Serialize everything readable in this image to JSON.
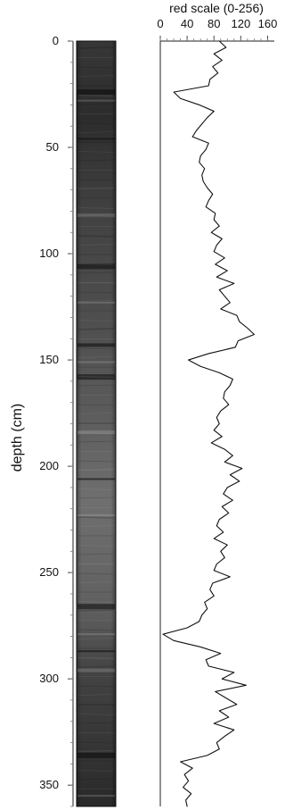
{
  "chart_data": {
    "type": "line",
    "title": "",
    "xlabel": "red scale (0-256)",
    "ylabel": "depth (cm)",
    "x_ticks": [
      "0",
      "40",
      "80",
      "120",
      "160"
    ],
    "y_ticks": [
      "0",
      "50",
      "100",
      "150",
      "200",
      "250",
      "300",
      "350"
    ],
    "xlim": [
      0,
      170
    ],
    "ylim": [
      0,
      360
    ],
    "grid": false,
    "series": [
      {
        "depth": [
          0,
          3,
          6,
          9,
          12,
          15,
          18,
          21,
          24,
          27,
          30,
          33,
          36,
          39,
          42,
          45,
          48,
          51,
          54,
          57,
          60,
          63,
          66,
          69,
          72,
          75,
          78,
          81,
          84,
          87,
          90,
          93,
          96,
          99,
          102,
          105,
          108,
          111,
          114,
          117,
          120,
          123,
          126,
          129,
          132,
          135,
          138,
          141,
          144,
          147,
          150,
          153,
          156,
          159,
          162,
          165,
          168,
          171,
          174,
          177,
          180,
          183,
          186,
          189,
          192,
          195,
          198,
          201,
          204,
          207,
          210,
          213,
          216,
          219,
          222,
          225,
          228,
          231,
          234,
          237,
          240,
          243,
          246,
          249,
          252,
          255,
          258,
          261,
          264,
          267,
          270,
          273,
          276,
          279,
          282,
          285,
          288,
          291,
          294,
          297,
          300,
          303,
          306,
          309,
          312,
          315,
          318,
          321,
          324,
          327,
          330,
          333,
          336,
          339,
          342,
          345,
          348,
          351,
          354,
          357,
          360
        ],
        "red_scale": [
          88,
          98,
          80,
          92,
          78,
          86,
          74,
          72,
          20,
          30,
          58,
          80,
          70,
          62,
          54,
          48,
          72,
          68,
          60,
          58,
          66,
          62,
          64,
          70,
          78,
          72,
          68,
          82,
          80,
          88,
          76,
          92,
          84,
          80,
          96,
          82,
          100,
          84,
          110,
          88,
          96,
          104,
          90,
          114,
          118,
          130,
          140,
          116,
          112,
          72,
          42,
          60,
          88,
          108,
          104,
          96,
          94,
          102,
          90,
          84,
          88,
          80,
          92,
          76,
          96,
          108,
          96,
          122,
          104,
          118,
          100,
          94,
          108,
          92,
          102,
          88,
          84,
          94,
          80,
          100,
          90,
          96,
          84,
          80,
          104,
          78,
          74,
          80,
          66,
          70,
          62,
          58,
          40,
          4,
          20,
          60,
          90,
          68,
          72,
          110,
          92,
          128,
          82,
          98,
          114,
          88,
          102,
          80,
          110,
          96,
          84,
          88,
          70,
          30,
          48,
          36,
          42,
          34,
          46,
          38,
          40
        ]
      }
    ]
  },
  "core_image": {
    "description": "",
    "bands": []
  }
}
